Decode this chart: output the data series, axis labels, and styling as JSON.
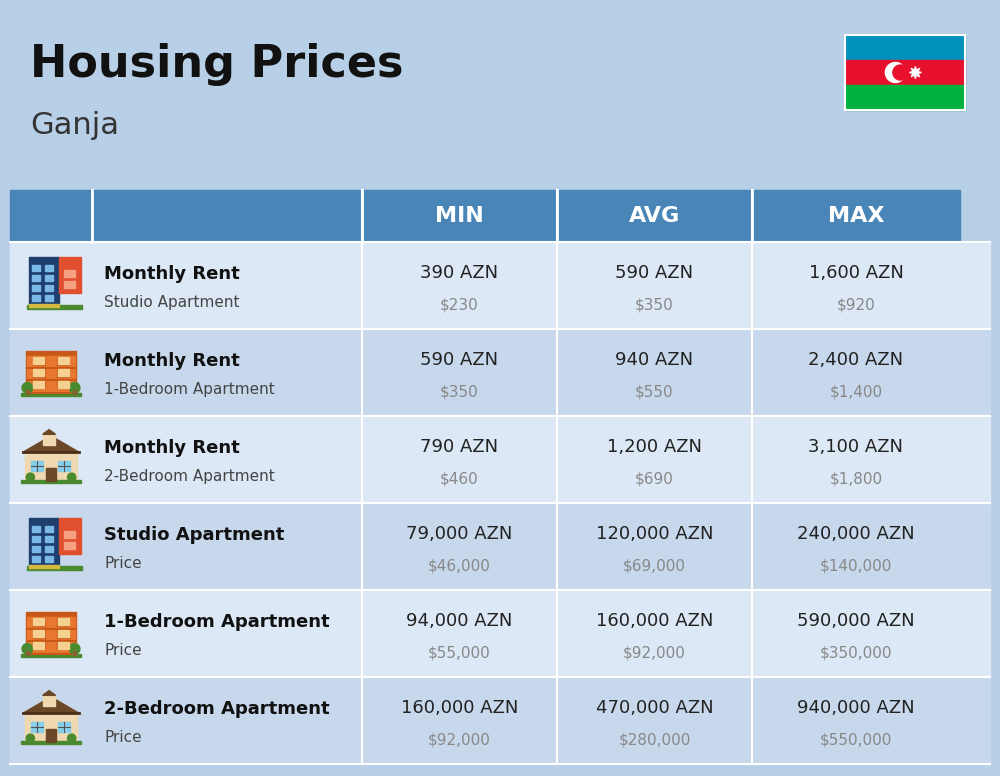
{
  "title": "Housing Prices",
  "subtitle": "Ganja",
  "background_color": "#b8cfe8",
  "header_bg_color": "#4a85b8",
  "header_text_color": "#ffffff",
  "row_bg_colors": [
    "#dce8f5",
    "#c8d8ec"
  ],
  "header_labels": [
    "MIN",
    "AVG",
    "MAX"
  ],
  "rows": [
    {
      "title": "Monthly Rent",
      "subtitle": "Studio Apartment",
      "icon_type": "studio_tall",
      "min_azn": "390 AZN",
      "min_usd": "$230",
      "avg_azn": "590 AZN",
      "avg_usd": "$350",
      "max_azn": "1,600 AZN",
      "max_usd": "$920"
    },
    {
      "title": "Monthly Rent",
      "subtitle": "1-Bedroom Apartment",
      "icon_type": "apartment_orange",
      "min_azn": "590 AZN",
      "min_usd": "$350",
      "avg_azn": "940 AZN",
      "avg_usd": "$550",
      "max_azn": "2,400 AZN",
      "max_usd": "$1,400"
    },
    {
      "title": "Monthly Rent",
      "subtitle": "2-Bedroom Apartment",
      "icon_type": "house_beige",
      "min_azn": "790 AZN",
      "min_usd": "$460",
      "avg_azn": "1,200 AZN",
      "avg_usd": "$690",
      "max_azn": "3,100 AZN",
      "max_usd": "$1,800"
    },
    {
      "title": "Studio Apartment",
      "subtitle": "Price",
      "icon_type": "studio_tall",
      "min_azn": "79,000 AZN",
      "min_usd": "$46,000",
      "avg_azn": "120,000 AZN",
      "avg_usd": "$69,000",
      "max_azn": "240,000 AZN",
      "max_usd": "$140,000"
    },
    {
      "title": "1-Bedroom Apartment",
      "subtitle": "Price",
      "icon_type": "apartment_orange",
      "min_azn": "94,000 AZN",
      "min_usd": "$55,000",
      "avg_azn": "160,000 AZN",
      "avg_usd": "$92,000",
      "max_azn": "590,000 AZN",
      "max_usd": "$350,000"
    },
    {
      "title": "2-Bedroom Apartment",
      "subtitle": "Price",
      "icon_type": "house_beige",
      "min_azn": "160,000 AZN",
      "min_usd": "$92,000",
      "avg_azn": "470,000 AZN",
      "avg_usd": "$280,000",
      "max_azn": "940,000 AZN",
      "max_usd": "$550,000"
    }
  ]
}
